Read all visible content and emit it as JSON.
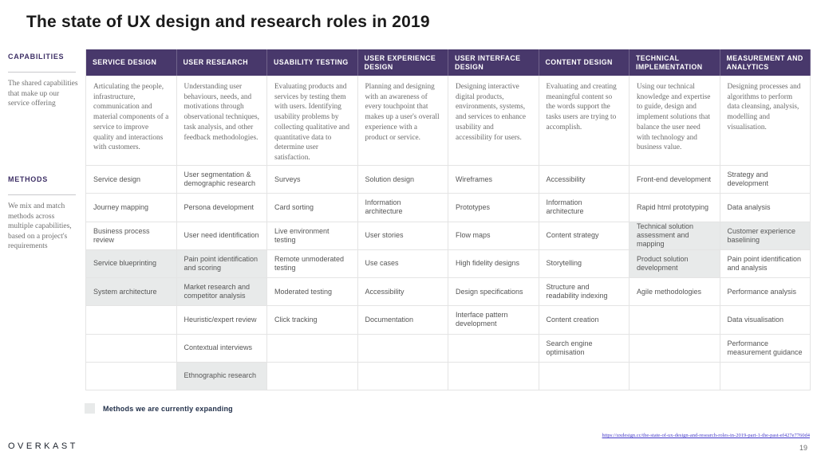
{
  "title": "The state of UX design and research roles in 2019",
  "sidebar": {
    "capabilities_label": "CAPABILITIES",
    "capabilities_description": "The shared capabilities that make up our service offering",
    "methods_label": "METHODS",
    "methods_description": "We mix and match methods across multiple capabilities, based on a project's requirements"
  },
  "colors": {
    "header_bg": "#48386b",
    "accent_purple": "#3e3066",
    "highlight_gray": "#e8eaea",
    "link_blue": "#4338c9"
  },
  "table": {
    "columns": [
      {
        "header": "SERVICE DESIGN",
        "description": "Articulating the people, infrastructure, communication and material components of a service to improve quality and interactions with customers.",
        "methods": [
          {
            "label": "Service design",
            "expanding": false
          },
          {
            "label": "Journey mapping",
            "expanding": false
          },
          {
            "label": "Business process review",
            "expanding": false
          },
          {
            "label": "Service blueprinting",
            "expanding": true
          },
          {
            "label": "System architecture",
            "expanding": true
          },
          {
            "label": "",
            "expanding": false
          },
          {
            "label": "",
            "expanding": false
          },
          {
            "label": "",
            "expanding": false
          }
        ]
      },
      {
        "header": "USER RESEARCH",
        "description": "Understanding user behaviours, needs, and motivations through observational techniques, task analysis, and other feedback methodologies.",
        "methods": [
          {
            "label": "User segmentation & demographic research",
            "expanding": false
          },
          {
            "label": "Persona development",
            "expanding": false
          },
          {
            "label": "User need identification",
            "expanding": false
          },
          {
            "label": "Pain point identification and scoring",
            "expanding": true
          },
          {
            "label": "Market research and competitor analysis",
            "expanding": true
          },
          {
            "label": "Heuristic/expert review",
            "expanding": false
          },
          {
            "label": "Contextual interviews",
            "expanding": false
          },
          {
            "label": "Ethnographic research",
            "expanding": true
          }
        ]
      },
      {
        "header": "USABILITY TESTING",
        "description": "Evaluating products and services by testing them with users. Identifying usability problems by collecting qualitative and quantitative data to determine user satisfaction.",
        "methods": [
          {
            "label": "Surveys",
            "expanding": false
          },
          {
            "label": "Card sorting",
            "expanding": false
          },
          {
            "label": "Live environment testing",
            "expanding": false
          },
          {
            "label": "Remote unmoderated testing",
            "expanding": false
          },
          {
            "label": "Moderated testing",
            "expanding": false
          },
          {
            "label": "Click tracking",
            "expanding": false
          },
          {
            "label": "",
            "expanding": false
          },
          {
            "label": "",
            "expanding": false
          }
        ]
      },
      {
        "header": "USER EXPERIENCE DESIGN",
        "description": "Planning and designing with an awareness of every touchpoint that makes up a user's overall experience with a product or service.",
        "methods": [
          {
            "label": "Solution design",
            "expanding": false
          },
          {
            "label": "Information architecture",
            "expanding": false
          },
          {
            "label": "User stories",
            "expanding": false
          },
          {
            "label": "Use cases",
            "expanding": false
          },
          {
            "label": "Accessibility",
            "expanding": false
          },
          {
            "label": "Documentation",
            "expanding": false
          },
          {
            "label": "",
            "expanding": false
          },
          {
            "label": "",
            "expanding": false
          }
        ]
      },
      {
        "header": "USER INTERFACE DESIGN",
        "description": "Designing interactive digital products, environments, systems, and services to enhance usability and accessibility for users.",
        "methods": [
          {
            "label": "Wireframes",
            "expanding": false
          },
          {
            "label": "Prototypes",
            "expanding": false
          },
          {
            "label": "Flow maps",
            "expanding": false
          },
          {
            "label": "High fidelity designs",
            "expanding": false
          },
          {
            "label": "Design specifications",
            "expanding": false
          },
          {
            "label": "Interface pattern development",
            "expanding": false
          },
          {
            "label": "",
            "expanding": false
          },
          {
            "label": "",
            "expanding": false
          }
        ]
      },
      {
        "header": "CONTENT DESIGN",
        "description": "Evaluating and creating meaningful content so the words support the tasks users are trying to accomplish.",
        "methods": [
          {
            "label": "Accessibility",
            "expanding": false
          },
          {
            "label": "Information architecture",
            "expanding": false
          },
          {
            "label": "Content strategy",
            "expanding": false
          },
          {
            "label": "Storytelling",
            "expanding": false
          },
          {
            "label": "Structure and readability indexing",
            "expanding": false
          },
          {
            "label": "Content creation",
            "expanding": false
          },
          {
            "label": "Search engine optimisation",
            "expanding": false
          },
          {
            "label": "",
            "expanding": false
          }
        ]
      },
      {
        "header": "TECHNICAL IMPLEMENTATION",
        "description": "Using our technical knowledge and expertise to guide, design and implement solutions that balance the user need with technology and business value.",
        "methods": [
          {
            "label": "Front-end development",
            "expanding": false
          },
          {
            "label": "Rapid html prototyping",
            "expanding": false
          },
          {
            "label": "Technical solution assessment and mapping",
            "expanding": true
          },
          {
            "label": "Product solution development",
            "expanding": true
          },
          {
            "label": "Agile methodologies",
            "expanding": false
          },
          {
            "label": "",
            "expanding": false
          },
          {
            "label": "",
            "expanding": false
          },
          {
            "label": "",
            "expanding": false
          }
        ]
      },
      {
        "header": "MEASUREMENT AND ANALYTICS",
        "description": "Designing processes and algorithms to perform data cleansing, analysis, modelling and visualisation.",
        "methods": [
          {
            "label": "Strategy and development",
            "expanding": false
          },
          {
            "label": "Data analysis",
            "expanding": false
          },
          {
            "label": "Customer experience baselining",
            "expanding": true
          },
          {
            "label": "Pain point identification and analysis",
            "expanding": false
          },
          {
            "label": "Performance analysis",
            "expanding": false
          },
          {
            "label": "Data visualisation",
            "expanding": false
          },
          {
            "label": "Performance measurement guidance",
            "expanding": false
          },
          {
            "label": "",
            "expanding": false
          }
        ]
      }
    ]
  },
  "legend": {
    "label": "Methods we are currently expanding"
  },
  "footer": {
    "logo": "OVERKAST",
    "source_url": "https://uxdesign.cc/the-state-of-ux-design-and-research-roles-in-2019-part-1-the-past-ef427e7760d4",
    "page_number": "19"
  }
}
